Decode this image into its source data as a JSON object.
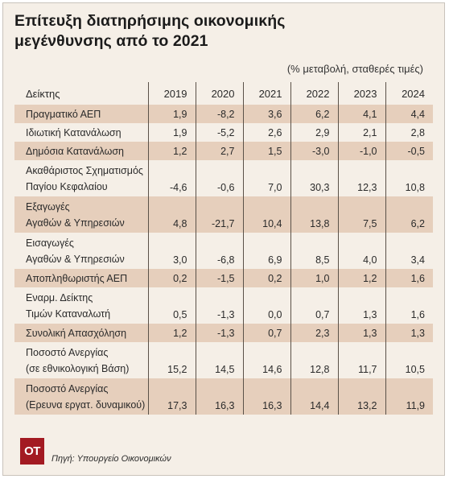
{
  "title_line1": "Επίτευξη διατηρήσιμης οικονομικής",
  "title_line2": "μεγένθυνσης από το 2021",
  "subtitle": "(% μεταβολή, σταθερές τιμές)",
  "header": {
    "label": "Δείκτης",
    "years": [
      "2019",
      "2020",
      "2021",
      "2022",
      "2023",
      "2024"
    ]
  },
  "rows": [
    {
      "label1": "Πραγματικό ΑΕΠ",
      "label2": "",
      "values": [
        "1,9",
        "-8,2",
        "3,6",
        "6,2",
        "4,1",
        "4,4"
      ]
    },
    {
      "label1": "Ιδιωτική Κατανάλωση",
      "label2": "",
      "values": [
        "1,9",
        "-5,2",
        "2,6",
        "2,9",
        "2,1",
        "2,8"
      ]
    },
    {
      "label1": "Δημόσια  Κατανάλωση",
      "label2": "",
      "values": [
        "1,2",
        "2,7",
        "1,5",
        "-3,0",
        "-1,0",
        "-0,5"
      ]
    },
    {
      "label1": "Ακαθάριστος Σχηματισμός",
      "label2": "Παγίου Κεφαλαίου",
      "values": [
        "-4,6",
        "-0,6",
        "7,0",
        "30,3",
        "12,3",
        "10,8"
      ]
    },
    {
      "label1": "Εξαγωγές",
      "label2": "Αγαθών & Υπηρεσιών",
      "values": [
        "4,8",
        "-21,7",
        "10,4",
        "13,8",
        "7,5",
        "6,2"
      ]
    },
    {
      "label1": "Εισαγωγές",
      "label2": "Αγαθών & Υπηρεσιών",
      "values": [
        "3,0",
        "-6,8",
        "6,9",
        "8,5",
        "4,0",
        "3,4"
      ]
    },
    {
      "label1": "Αποπληθωριστής ΑΕΠ",
      "label2": "",
      "values": [
        "0,2",
        "-1,5",
        "0,2",
        "1,0",
        "1,2",
        "1,6"
      ]
    },
    {
      "label1": "Εναρμ. Δείκτης",
      "label2": "Τιμών Καταναλωτή",
      "values": [
        "0,5",
        "-1,3",
        "0,0",
        "0,7",
        "1,3",
        "1,6"
      ]
    },
    {
      "label1": "Συνολική Απασχόληση",
      "label2": "",
      "values": [
        "1,2",
        "-1,3",
        "0,7",
        "2,3",
        "1,3",
        "1,3"
      ]
    },
    {
      "label1": "Ποσοστό Ανεργίας",
      "label2": "(σε εθνικολογική Βάση)",
      "values": [
        "15,2",
        "14,5",
        "14,6",
        "12,8",
        "11,7",
        "10,5"
      ]
    },
    {
      "label1": "Ποσοστό Ανεργίας",
      "label2": "(Ερευνα εργατ. δυναμικού)",
      "values": [
        "17,3",
        "16,3",
        "16,3",
        "14,4",
        "13,2",
        "11,9"
      ]
    }
  ],
  "logo": "ΟΤ",
  "source": "Πηγή: Υπουργείο Οικονομικών"
}
